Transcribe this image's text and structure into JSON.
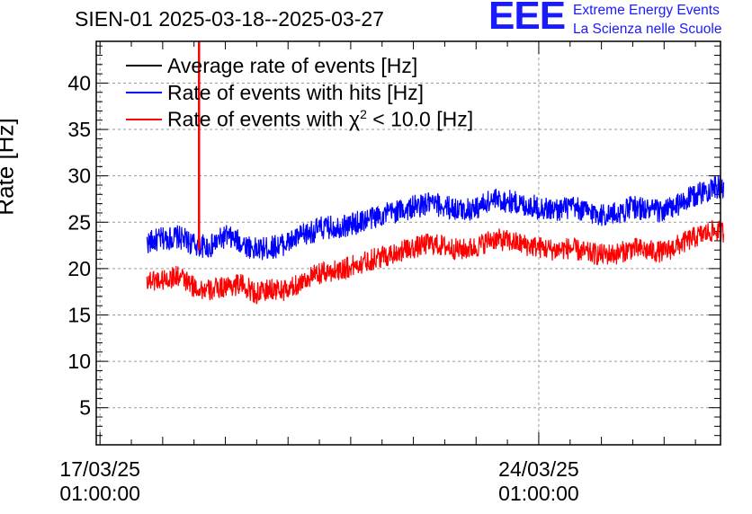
{
  "header": {
    "title": "SIEN-01 2025-03-18--2025-03-27",
    "logo_text": "EEE",
    "logo_line1": "Extreme Energy Events",
    "logo_line2": "La Scienza nelle Scuole"
  },
  "chart_data": {
    "type": "line",
    "title": "SIEN-01 2025-03-18--2025-03-27",
    "ylabel": "Rate [Hz]",
    "xlabel": "",
    "ylim": [
      1.0,
      44.5
    ],
    "xlim_days": [
      -0.06,
      9.9
    ],
    "yticks": [
      5,
      10,
      15,
      20,
      25,
      30,
      35,
      40
    ],
    "x_tick_labels": [
      {
        "day": 0,
        "line1": "17/03/25",
        "line2": "01:00:00"
      },
      {
        "day": 7,
        "line1": "24/03/25",
        "line2": "01:00:00"
      }
    ],
    "grid": true,
    "legend": [
      {
        "name": "Average rate of events [Hz]",
        "color": "#000000",
        "text": "Average rate of events [Hz]",
        "sup": "",
        "suffix": ""
      },
      {
        "name": "Rate of events with hits [Hz]",
        "color": "#0000ff",
        "text": "Rate of events with hits [Hz]",
        "sup": "",
        "suffix": ""
      },
      {
        "name": "Rate of events with chi2 < 10.0 [Hz]",
        "color": "#ff0000",
        "text": "Rate of events with χ",
        "sup": "2",
        "suffix": " < 10.0 [Hz]"
      }
    ],
    "series": [
      {
        "name": "Rate of events with hits [Hz]",
        "color": "#0000ff",
        "x_days": [
          0.75,
          1.0,
          1.25,
          1.5,
          1.75,
          2.0,
          2.25,
          2.5,
          2.75,
          3.0,
          3.25,
          3.5,
          3.75,
          4.0,
          4.25,
          4.5,
          4.75,
          5.0,
          5.25,
          5.5,
          5.75,
          6.0,
          6.25,
          6.5,
          6.75,
          7.0,
          7.25,
          7.5,
          7.75,
          8.0,
          8.25,
          8.5,
          8.75,
          9.0,
          9.25,
          9.5,
          9.75,
          9.95
        ],
        "values": [
          22.8,
          23.2,
          23.4,
          22.6,
          22.3,
          23.5,
          22.8,
          22.0,
          22.3,
          22.8,
          23.6,
          24.3,
          24.5,
          24.7,
          25.3,
          25.8,
          26.2,
          26.6,
          27.0,
          26.7,
          26.3,
          26.5,
          27.4,
          27.3,
          26.9,
          26.6,
          26.3,
          26.6,
          26.2,
          25.8,
          25.9,
          26.7,
          26.3,
          26.2,
          26.9,
          27.9,
          28.7,
          28.7
        ],
        "noise": 1.3
      },
      {
        "name": "Rate of events with chi2 < 10.0 [Hz]",
        "color": "#ff0000",
        "x_days": [
          0.75,
          1.0,
          1.25,
          1.5,
          1.75,
          2.0,
          2.25,
          2.5,
          2.75,
          3.0,
          3.25,
          3.5,
          3.75,
          4.0,
          4.25,
          4.5,
          4.75,
          5.0,
          5.25,
          5.5,
          5.75,
          6.0,
          6.25,
          6.5,
          6.75,
          7.0,
          7.25,
          7.5,
          7.75,
          8.0,
          8.25,
          8.5,
          8.75,
          9.0,
          9.25,
          9.5,
          9.75,
          9.95
        ],
        "values": [
          18.8,
          18.8,
          19.2,
          18.0,
          17.6,
          18.1,
          18.3,
          17.3,
          17.8,
          17.6,
          18.8,
          19.4,
          19.8,
          20.2,
          20.8,
          21.3,
          21.8,
          22.2,
          22.7,
          22.4,
          22.0,
          22.3,
          23.2,
          23.0,
          22.6,
          22.3,
          22.0,
          22.2,
          21.7,
          21.5,
          21.6,
          22.2,
          21.9,
          21.8,
          22.6,
          23.4,
          24.0,
          24.0
        ],
        "noise": 1.2
      }
    ],
    "spike": {
      "day": 1.58,
      "value_top": 44.5,
      "value_bottom": 22.0,
      "color": "#ff0000"
    }
  }
}
